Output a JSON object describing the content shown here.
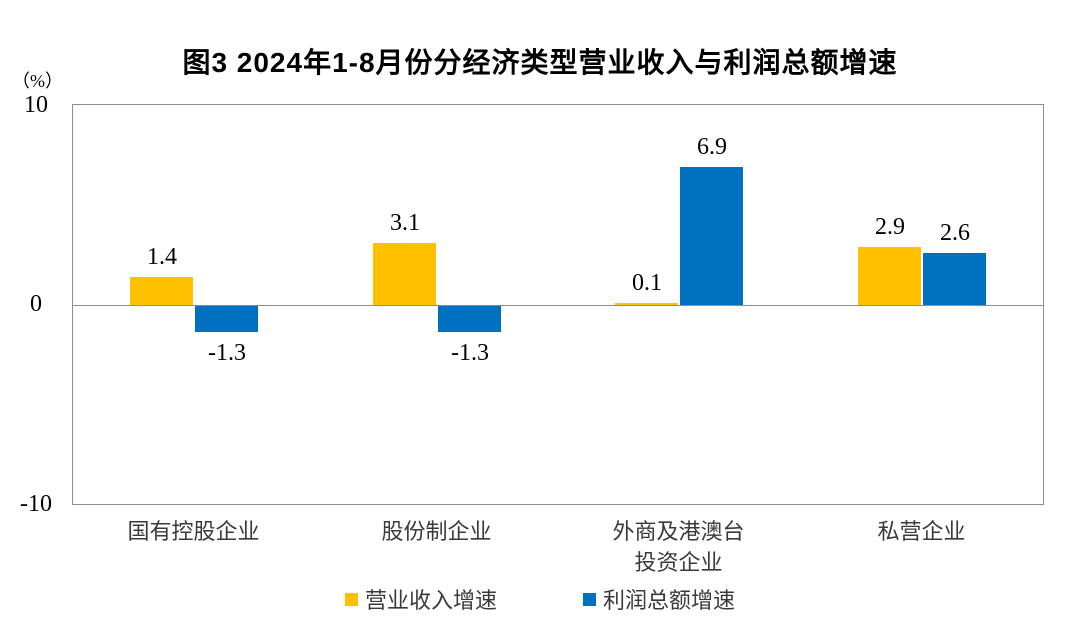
{
  "chart_data": {
    "type": "bar",
    "title": "图3 2024年1-8月份分经济类型营业收入与利润总额增速",
    "ylabel_unit": "（%）",
    "categories": [
      "国有控股企业",
      "股份制企业",
      "外商及港澳台\n投资企业",
      "私营企业"
    ],
    "series": [
      {
        "name": "营业收入增速",
        "color": "#FFC000",
        "values": [
          1.4,
          3.1,
          0.1,
          2.9
        ]
      },
      {
        "name": "利润总额增速",
        "color": "#0070C0",
        "values": [
          -1.3,
          -1.3,
          6.9,
          2.6
        ]
      }
    ],
    "ylim": [
      -10,
      10
    ],
    "yticks": [
      10,
      0,
      -10
    ],
    "legend_position": "bottom",
    "grid": false,
    "axis_color": "#8e8e8e",
    "value_label_format": "one-decimal"
  }
}
